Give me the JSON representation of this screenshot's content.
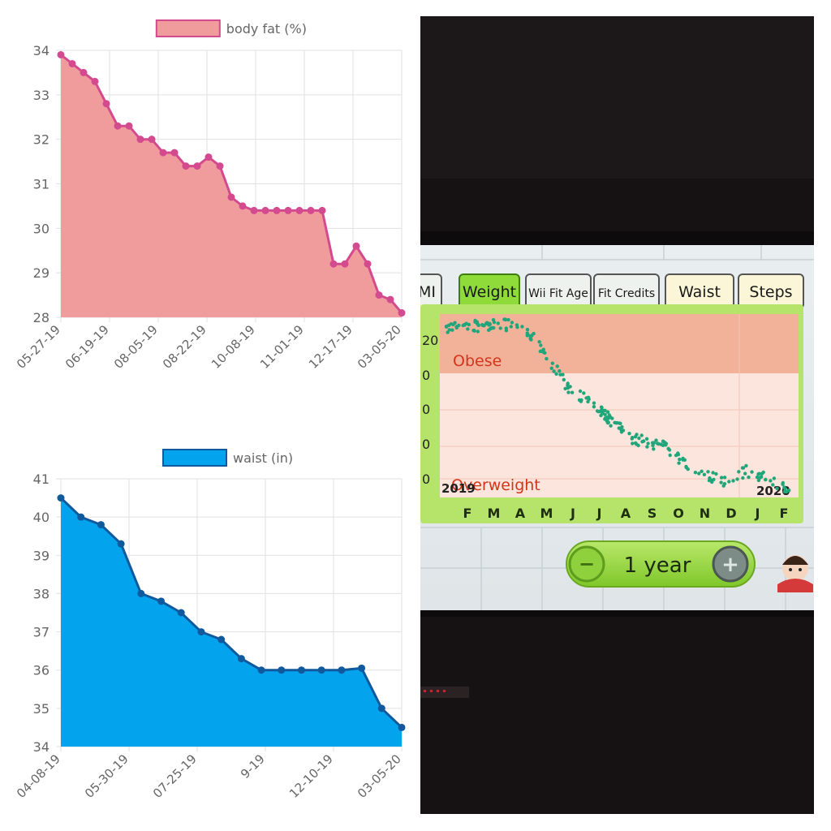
{
  "chart_data": [
    {
      "type": "area",
      "legend": "body fat (%)",
      "legend_position": "top-center",
      "grid": true,
      "colors": {
        "line": "#d44a8f",
        "fill": "#f19c9c"
      },
      "ylim": [
        28,
        34
      ],
      "y_ticks": [
        "28",
        "29",
        "30",
        "31",
        "32",
        "33",
        "34"
      ],
      "x_tick_labels": [
        "05-27-19",
        "06-19-19",
        "08-05-19",
        "08-22-19",
        "10-08-19",
        "11-01-19",
        "12-17-19",
        "03-05-20"
      ],
      "values": [
        33.9,
        33.7,
        33.5,
        33.3,
        32.8,
        32.3,
        32.3,
        32.0,
        32.0,
        31.7,
        31.7,
        31.4,
        31.4,
        31.6,
        31.4,
        30.7,
        30.5,
        30.4,
        30.4,
        30.4,
        30.4,
        30.4,
        30.4,
        30.4,
        29.2,
        29.2,
        29.6,
        29.2,
        28.5,
        28.4,
        28.1
      ]
    },
    {
      "type": "area",
      "legend": "waist (in)",
      "legend_position": "top-center",
      "grid": true,
      "colors": {
        "line": "#11599d",
        "fill": "#03a3ee"
      },
      "ylim": [
        34,
        41
      ],
      "y_ticks": [
        "34",
        "35",
        "36",
        "37",
        "38",
        "39",
        "40",
        "41"
      ],
      "x_tick_labels": [
        "04-08-19",
        "05-30-19",
        "07-25-19",
        "9-19",
        "12-10-19",
        "03-05-20"
      ],
      "values": [
        40.5,
        40.0,
        39.8,
        39.3,
        38.0,
        37.8,
        37.5,
        37.0,
        36.8,
        36.3,
        36.0,
        36.0,
        36.0,
        36.0,
        36.0,
        36.05,
        35.0,
        34.5
      ]
    }
  ],
  "wii_photo": {
    "tabs": [
      "MI",
      "Weight",
      "Wii Fit Age",
      "Fit Credits",
      "Waist",
      "Steps"
    ],
    "active_tab": "Weight",
    "zones": [
      "Obese",
      "Overweight"
    ],
    "year_start": "2019",
    "year_end": "2020",
    "y_ticks": [
      "20",
      "0",
      "0",
      "0",
      "0"
    ],
    "months": [
      "F",
      "M",
      "A",
      "M",
      "J",
      "J",
      "A",
      "S",
      "O",
      "N",
      "D",
      "J",
      "F"
    ],
    "range_label": "1 year",
    "minus_label": "−",
    "plus_label": "+",
    "colors": {
      "bar": "#9ed83f",
      "dots": "#1fa67a",
      "obese_zone": "#f2b29a",
      "overweight_zone": "#fbe5dc"
    }
  }
}
